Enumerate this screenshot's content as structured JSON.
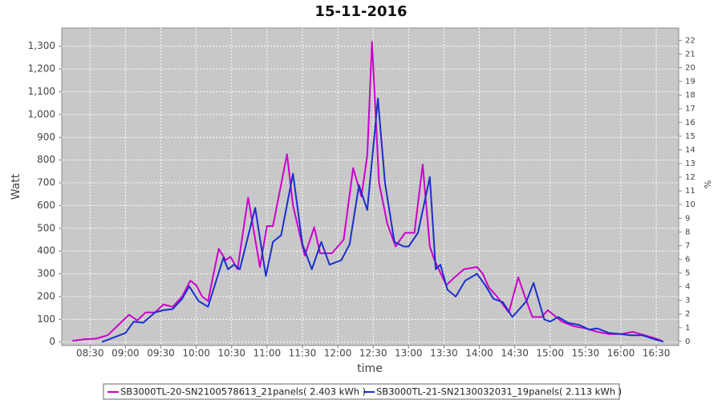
{
  "chart_data": {
    "type": "line",
    "title": "15-11-2016",
    "xlabel": "time",
    "ylabel": "Watt",
    "y2label": "%",
    "xlim": [
      "08:06",
      "16:49"
    ],
    "xticks": [
      "08:30",
      "09:00",
      "09:30",
      "10:00",
      "10:30",
      "11:00",
      "11:30",
      "12:00",
      "12:30",
      "13:00",
      "13:30",
      "14:00",
      "14:30",
      "15:00",
      "15:30",
      "16:00",
      "16:30"
    ],
    "ylim": [
      -15,
      1380
    ],
    "yticks": [
      0,
      100,
      200,
      300,
      400,
      500,
      600,
      700,
      800,
      900,
      {
        "value": 1000,
        "label": "1,000"
      },
      {
        "value": 1100,
        "label": "1,100"
      },
      {
        "value": 1200,
        "label": "1,200"
      },
      {
        "value": 1300,
        "label": "1,300"
      }
    ],
    "y2lim": [
      -0.3,
      22.9
    ],
    "y2ticks": [
      0,
      1,
      2,
      3,
      4,
      5,
      6,
      7,
      8,
      9,
      10,
      11,
      12,
      13,
      14,
      15,
      16,
      17,
      18,
      19,
      20,
      21,
      22
    ],
    "grid": true,
    "legend": "bottom",
    "series": [
      {
        "name": "SB3000TL-20-SN2100578613_21panels( 2.403 kWh )",
        "color": "#cc00cc",
        "x": [
          "08:15",
          "08:25",
          "08:35",
          "08:45",
          "08:55",
          "09:03",
          "09:10",
          "09:17",
          "09:25",
          "09:32",
          "09:40",
          "09:48",
          "09:55",
          "10:00",
          "10:05",
          "10:10",
          "10:19",
          "10:25",
          "10:29",
          "10:35",
          "10:44",
          "10:54",
          "11:00",
          "11:05",
          "11:17",
          "11:22",
          "11:32",
          "11:40",
          "11:45",
          "11:55",
          "12:05",
          "12:13",
          "12:20",
          "12:25",
          "12:29",
          "12:35",
          "12:42",
          "12:49",
          "12:57",
          "13:05",
          "13:12",
          "13:18",
          "13:22",
          "13:32",
          "13:38",
          "13:47",
          "13:58",
          "14:03",
          "14:08",
          "14:15",
          "14:25",
          "14:33",
          "14:40",
          "14:45",
          "14:53",
          "14:58",
          "15:10",
          "15:20",
          "15:30",
          "15:40",
          "15:50",
          "16:00",
          "16:10",
          "16:20",
          "16:30",
          "16:35"
        ],
        "values": [
          5,
          12,
          15,
          30,
          80,
          120,
          95,
          130,
          130,
          165,
          155,
          200,
          270,
          250,
          200,
          180,
          410,
          360,
          375,
          320,
          635,
          330,
          510,
          510,
          825,
          600,
          380,
          505,
          390,
          390,
          450,
          765,
          640,
          820,
          1320,
          700,
          520,
          420,
          480,
          480,
          780,
          420,
          360,
          250,
          280,
          320,
          330,
          300,
          240,
          200,
          130,
          285,
          180,
          110,
          110,
          140,
          90,
          70,
          60,
          45,
          35,
          35,
          45,
          30,
          15,
          5
        ]
      },
      {
        "name": "SB3000TL-21-SN2130032031_19panels( 2.113 kWh )",
        "color": "#1a2fcc",
        "x": [
          "08:40",
          "08:50",
          "09:00",
          "09:07",
          "09:15",
          "09:25",
          "09:32",
          "09:40",
          "09:48",
          "09:54",
          "10:02",
          "10:10",
          "10:23",
          "10:27",
          "10:32",
          "10:37",
          "10:50",
          "10:59",
          "11:05",
          "11:12",
          "11:22",
          "11:30",
          "11:38",
          "11:46",
          "11:53",
          "12:03",
          "12:10",
          "12:18",
          "12:25",
          "12:34",
          "12:40",
          "12:48",
          "12:56",
          "13:00",
          "13:08",
          "13:18",
          "13:23",
          "13:27",
          "13:33",
          "13:40",
          "13:48",
          "13:58",
          "14:05",
          "14:12",
          "14:20",
          "14:28",
          "14:40",
          "14:46",
          "14:55",
          "15:00",
          "15:07",
          "15:15",
          "15:25",
          "15:33",
          "15:40",
          "15:50",
          "16:00",
          "16:08",
          "16:18",
          "16:30",
          "16:36"
        ],
        "values": [
          0,
          20,
          40,
          90,
          85,
          130,
          140,
          145,
          190,
          245,
          180,
          155,
          370,
          320,
          340,
          320,
          590,
          290,
          440,
          470,
          740,
          430,
          320,
          440,
          340,
          360,
          430,
          690,
          580,
          1070,
          700,
          440,
          420,
          420,
          480,
          725,
          320,
          340,
          230,
          200,
          270,
          300,
          250,
          190,
          175,
          110,
          180,
          260,
          100,
          90,
          110,
          85,
          75,
          55,
          60,
          40,
          35,
          30,
          30,
          10,
          2
        ]
      }
    ]
  }
}
